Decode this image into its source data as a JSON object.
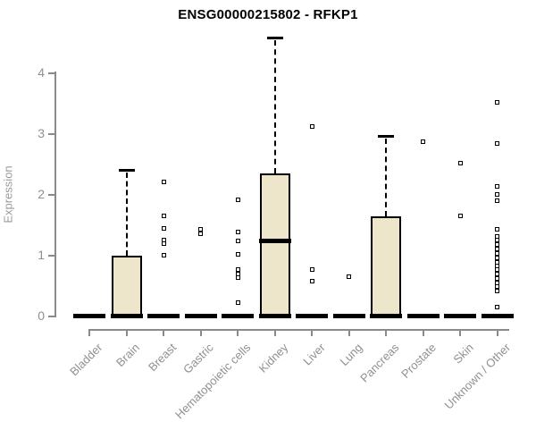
{
  "chart_data": {
    "type": "box",
    "title": "ENSG00000215802 - RFKP1",
    "xlabel": "",
    "ylabel": "Expression",
    "yticks": [
      0,
      1,
      2,
      3,
      4
    ],
    "ylim": [
      0,
      4.75
    ],
    "grid": false,
    "colors": {
      "box_fill": "#EDE6CB",
      "box_border": "#000000",
      "axis": "#8A8A8A",
      "tick_label": "#909090"
    },
    "categories": [
      "Bladder",
      "Brain",
      "Breast",
      "Gastric",
      "Hematopoietic cells",
      "Kidney",
      "Liver",
      "Lung",
      "Pancreas",
      "Prostate",
      "Skin",
      "Unknown / Other"
    ],
    "boxes": [
      {
        "category": "Bladder",
        "q1": 0,
        "median": 0,
        "q3": 0,
        "whisker_low": 0,
        "whisker_high": 0,
        "outliers": []
      },
      {
        "category": "Brain",
        "q1": 0,
        "median": 0,
        "q3": 1.0,
        "whisker_low": 0,
        "whisker_high": 2.4,
        "outliers": []
      },
      {
        "category": "Breast",
        "q1": 0,
        "median": 0,
        "q3": 0,
        "whisker_low": 0,
        "whisker_high": 0,
        "outliers": [
          2.21,
          1.65,
          1.44,
          1.26,
          1.19,
          1.0
        ]
      },
      {
        "category": "Gastric",
        "q1": 0,
        "median": 0,
        "q3": 0,
        "whisker_low": 0,
        "whisker_high": 0,
        "outliers": [
          1.43,
          1.36
        ]
      },
      {
        "category": "Hematopoietic cells",
        "q1": 0,
        "median": 0,
        "q3": 0,
        "whisker_low": 0,
        "whisker_high": 0,
        "outliers": [
          1.92,
          1.39,
          1.24,
          1.02,
          0.76,
          0.7,
          0.63,
          0.22
        ]
      },
      {
        "category": "Kidney",
        "q1": 0,
        "median": 1.24,
        "q3": 2.35,
        "whisker_low": 0,
        "whisker_high": 4.58,
        "outliers": []
      },
      {
        "category": "Liver",
        "q1": 0,
        "median": 0,
        "q3": 0,
        "whisker_low": 0,
        "whisker_high": 0,
        "outliers": [
          3.13,
          0.76,
          0.58
        ]
      },
      {
        "category": "Lung",
        "q1": 0,
        "median": 0,
        "q3": 0,
        "whisker_low": 0,
        "whisker_high": 0,
        "outliers": [
          0.65
        ]
      },
      {
        "category": "Pancreas",
        "q1": 0,
        "median": 0,
        "q3": 1.64,
        "whisker_low": 0,
        "whisker_high": 2.96,
        "outliers": []
      },
      {
        "category": "Prostate",
        "q1": 0,
        "median": 0,
        "q3": 0,
        "whisker_low": 0,
        "whisker_high": 0,
        "outliers": [
          2.87
        ]
      },
      {
        "category": "Skin",
        "q1": 0,
        "median": 0,
        "q3": 0,
        "whisker_low": 0,
        "whisker_high": 0,
        "outliers": [
          2.52,
          1.65
        ]
      },
      {
        "category": "Unknown / Other",
        "q1": 0,
        "median": 0,
        "q3": 0,
        "whisker_low": 0,
        "whisker_high": 0,
        "outliers": [
          3.53,
          2.85,
          2.14,
          2.01,
          1.9,
          1.43,
          1.32,
          1.25,
          1.18,
          1.1,
          1.03,
          0.96,
          0.89,
          0.82,
          0.76,
          0.69,
          0.62,
          0.55,
          0.48,
          0.41,
          0.15
        ]
      }
    ]
  }
}
